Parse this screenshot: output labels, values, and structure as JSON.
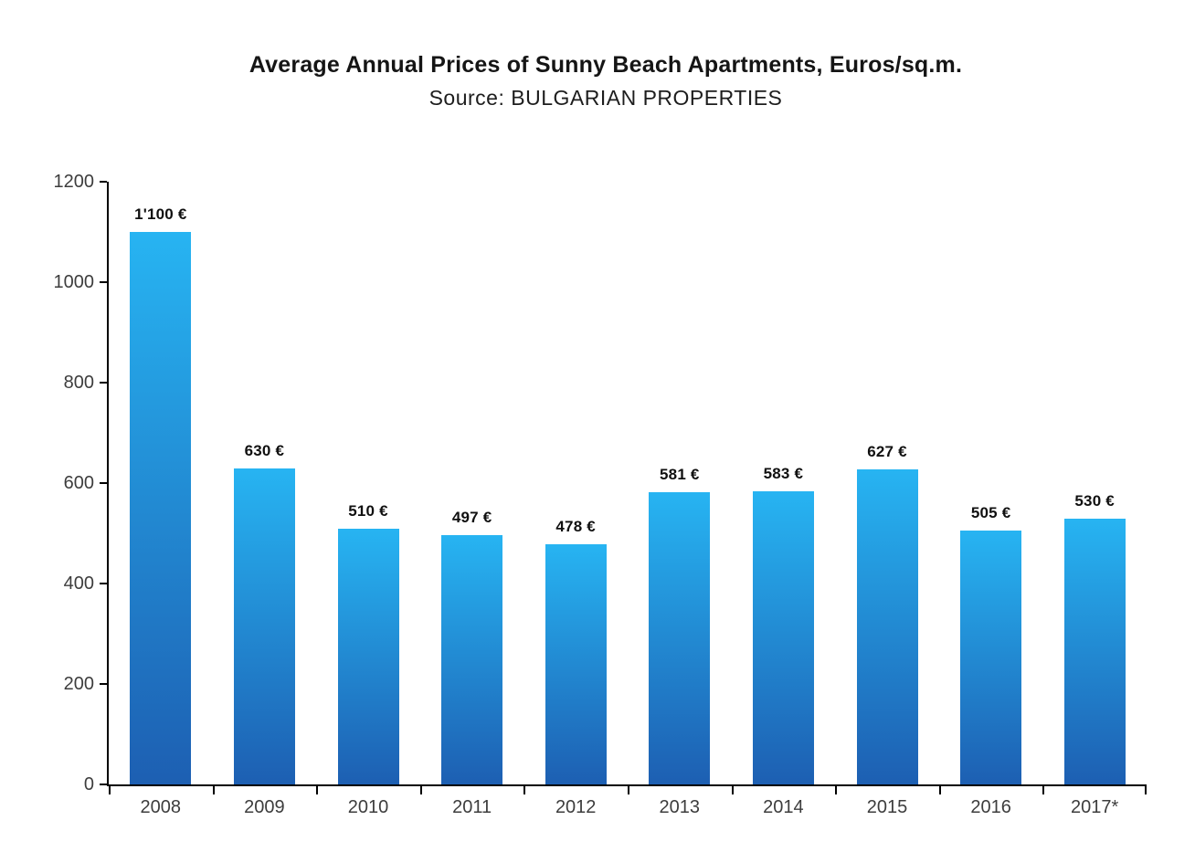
{
  "chart_data": {
    "type": "bar",
    "title": "Average Annual Prices of Sunny Beach Apartments, Euros/sq.m.",
    "subtitle": "Source: BULGARIAN PROPERTIES",
    "categories": [
      "2008",
      "2009",
      "2010",
      "2011",
      "2012",
      "2013",
      "2014",
      "2015",
      "2016",
      "2017*"
    ],
    "values": [
      1100,
      630,
      510,
      497,
      478,
      581,
      583,
      627,
      505,
      530
    ],
    "value_labels": [
      "1'100 €",
      "630 €",
      "510 €",
      "497 €",
      "478 €",
      "581 €",
      "583 €",
      "627 €",
      "505 €",
      "530 €"
    ],
    "xlabel": "",
    "ylabel": "",
    "ylim": [
      0,
      1200
    ],
    "yticks": [
      0,
      200,
      400,
      600,
      800,
      1000,
      1200
    ],
    "grid": false,
    "legend": null,
    "colors": {
      "bar_gradient_top": "#27b4f2",
      "bar_gradient_bottom": "#1d5fb2",
      "axis": "#000000",
      "tick_label": "#3d3d3d",
      "value_label": "#101010",
      "title": "#151515",
      "background": "#ffffff"
    }
  }
}
